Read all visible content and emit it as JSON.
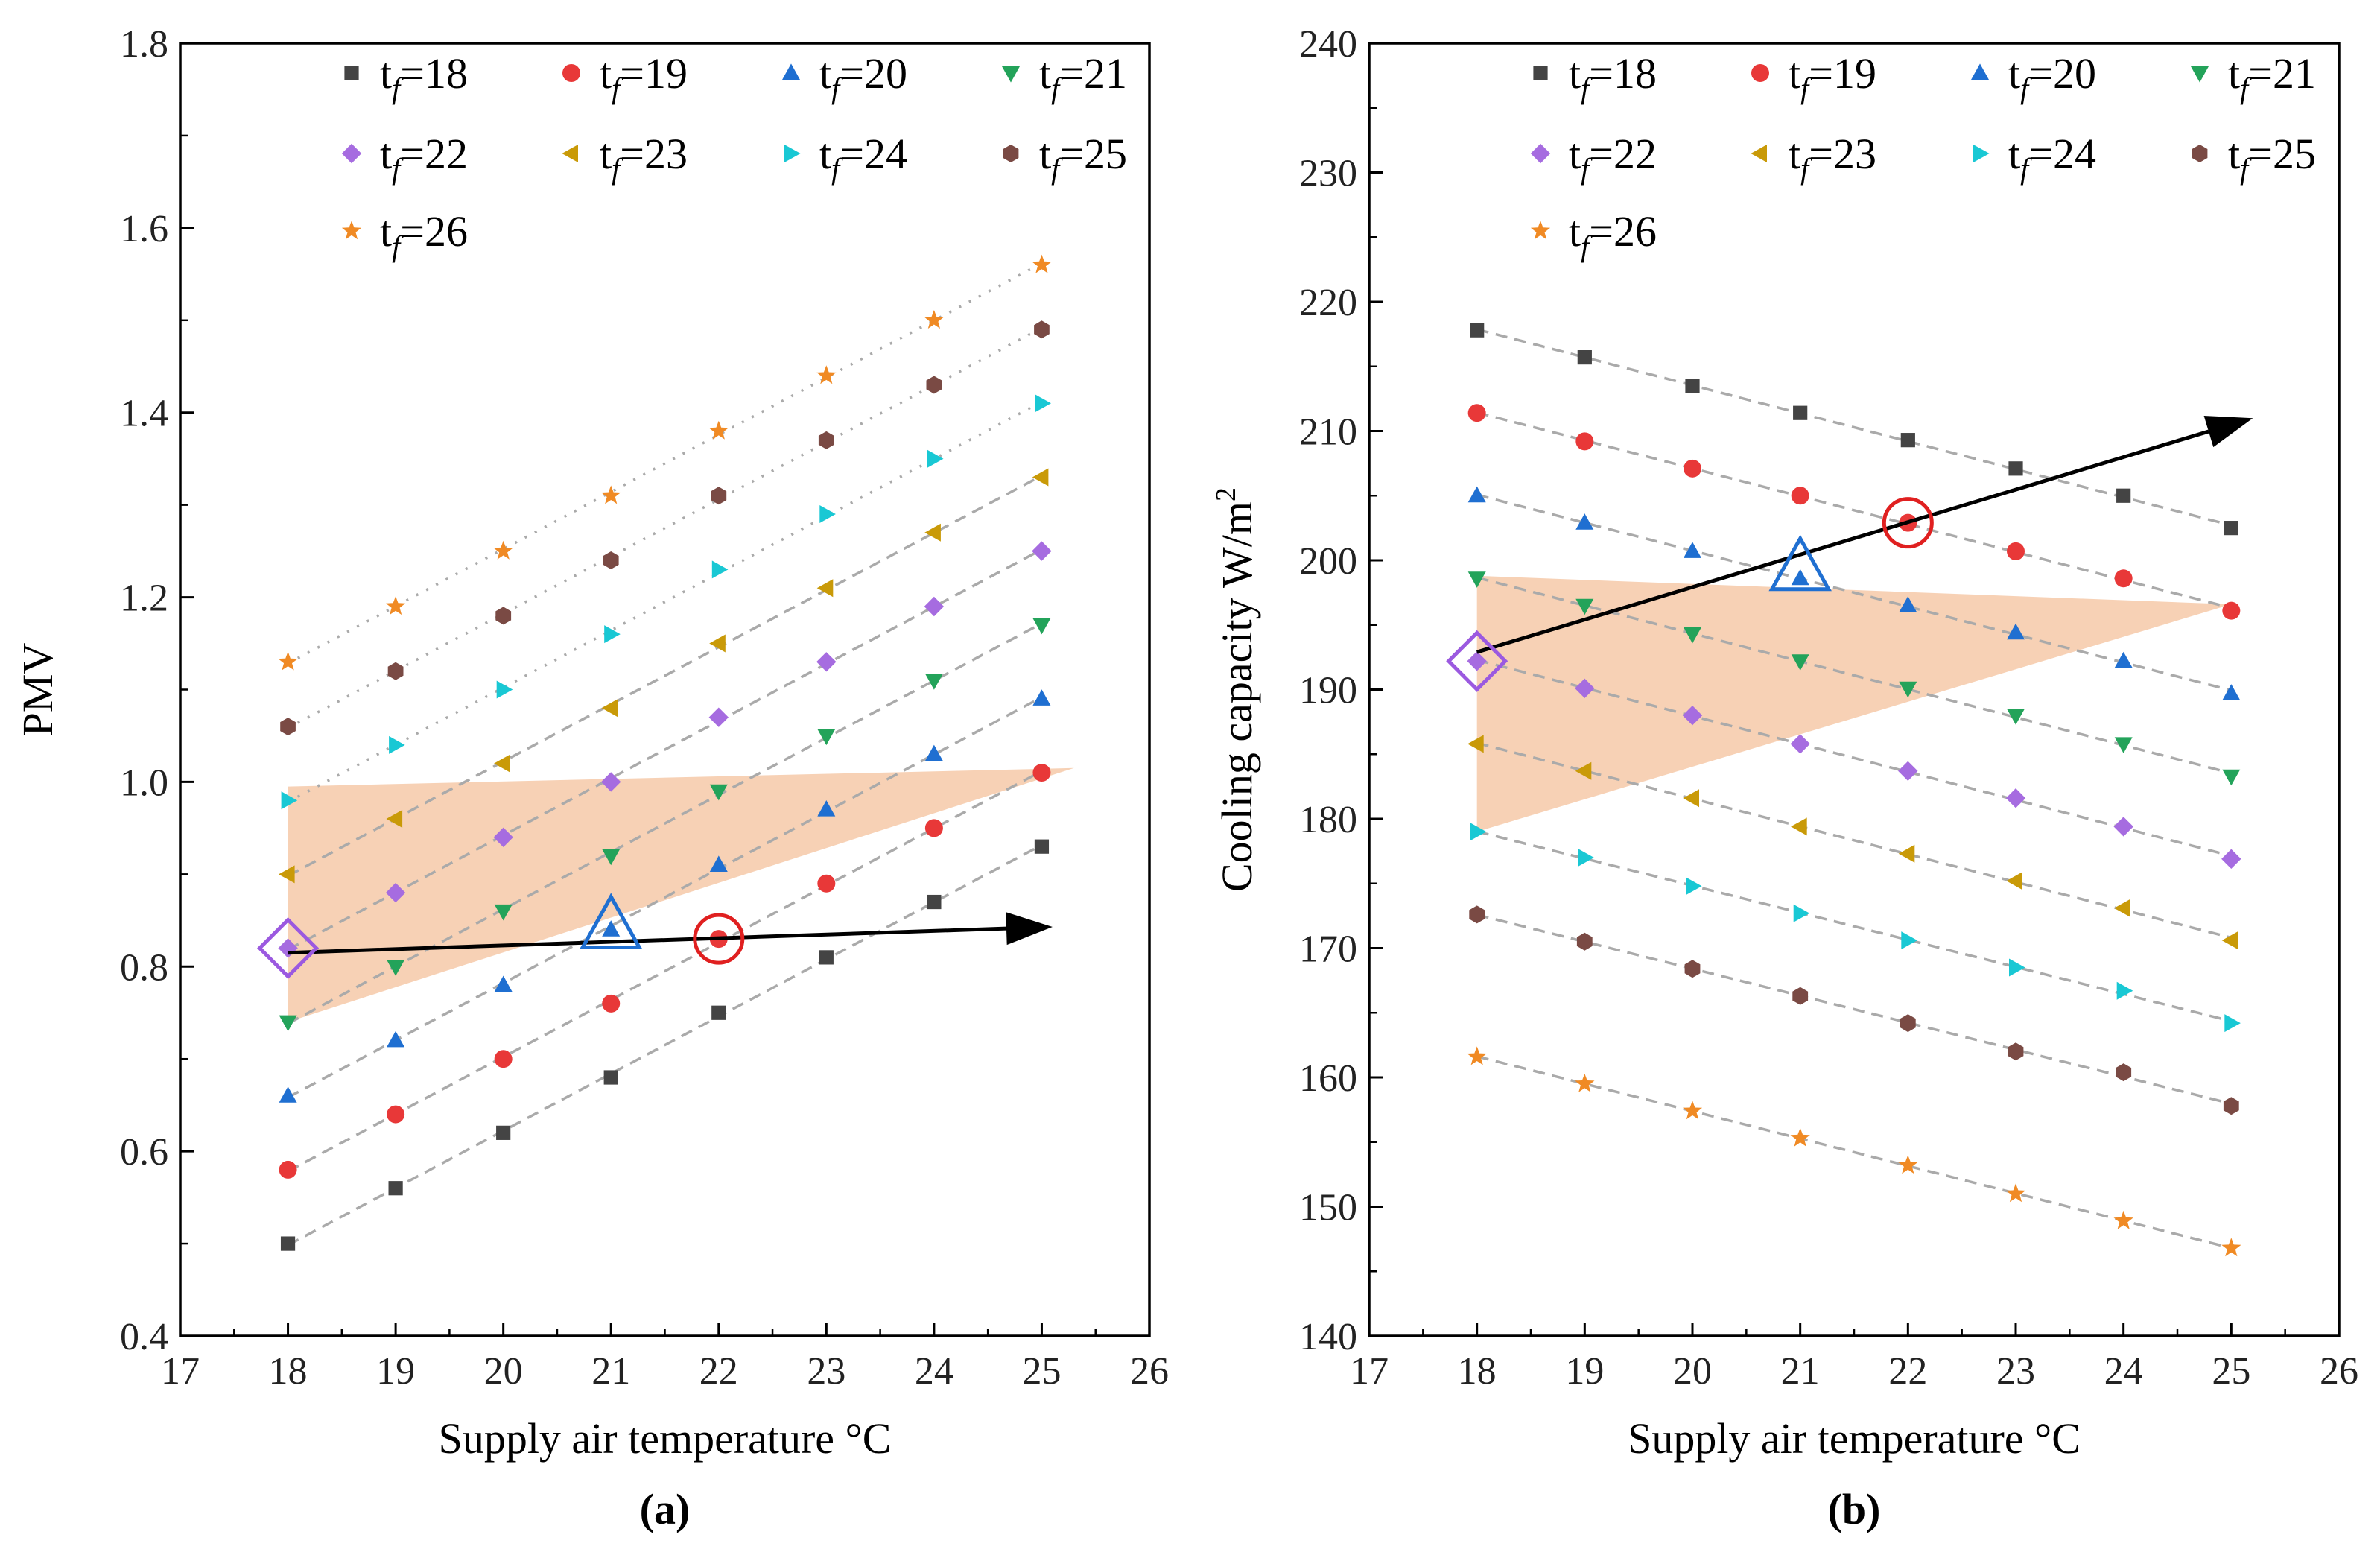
{
  "chart_data": [
    {
      "type": "scatter",
      "panel_label": "(a)",
      "xlabel": "Supply air temperature °C",
      "ylabel": "PMV",
      "xlim": [
        17,
        26
      ],
      "ylim": [
        0.4,
        1.8
      ],
      "xticks": [
        "17",
        "18",
        "19",
        "20",
        "21",
        "22",
        "23",
        "24",
        "25",
        "26"
      ],
      "yticks": [
        "0.4",
        "0.6",
        "0.8",
        "1.0",
        "1.2",
        "1.4",
        "1.6",
        "1.8"
      ],
      "x": [
        18,
        19,
        20,
        21,
        22,
        23,
        24,
        25
      ],
      "series": [
        {
          "name": "18",
          "values": [
            0.5,
            0.56,
            0.62,
            0.68,
            0.75,
            0.81,
            0.87,
            0.93
          ]
        },
        {
          "name": "19",
          "values": [
            0.58,
            0.64,
            0.7,
            0.76,
            0.83,
            0.89,
            0.95,
            1.01
          ]
        },
        {
          "name": "20",
          "values": [
            0.66,
            0.72,
            0.78,
            0.84,
            0.91,
            0.97,
            1.03,
            1.09
          ]
        },
        {
          "name": "21",
          "values": [
            0.74,
            0.8,
            0.86,
            0.92,
            0.99,
            1.05,
            1.11,
            1.17
          ]
        },
        {
          "name": "22",
          "values": [
            0.82,
            0.88,
            0.94,
            1.0,
            1.07,
            1.13,
            1.19,
            1.25
          ]
        },
        {
          "name": "23",
          "values": [
            0.9,
            0.96,
            1.02,
            1.08,
            1.15,
            1.21,
            1.27,
            1.33
          ]
        },
        {
          "name": "24",
          "values": [
            0.98,
            1.04,
            1.1,
            1.16,
            1.23,
            1.29,
            1.35,
            1.41
          ]
        },
        {
          "name": "25",
          "values": [
            1.06,
            1.12,
            1.18,
            1.24,
            1.31,
            1.37,
            1.43,
            1.49
          ]
        },
        {
          "name": "26",
          "values": [
            1.13,
            1.19,
            1.25,
            1.31,
            1.38,
            1.44,
            1.5,
            1.56
          ]
        }
      ],
      "shaded_region": [
        [
          18,
          0.74
        ],
        [
          18,
          0.995
        ],
        [
          25.3,
          1.015
        ]
      ],
      "arrow": {
        "from": [
          18,
          0.815
        ],
        "to": [
          25.1,
          0.843
        ]
      },
      "highlights": [
        {
          "shape": "diamond",
          "x": 18,
          "y": 0.82,
          "color": "#9b59e0"
        },
        {
          "shape": "triangle",
          "x": 21,
          "y": 0.845,
          "color": "#1f6fd1"
        },
        {
          "shape": "circle",
          "x": 22,
          "y": 0.83,
          "color": "#e02020"
        }
      ]
    },
    {
      "type": "scatter",
      "panel_label": "(b)",
      "xlabel": "Supply air temperature °C",
      "ylabel": "Cooling capacity W/m",
      "ylabel_sup": "2",
      "xlim": [
        17,
        26
      ],
      "ylim": [
        140,
        240
      ],
      "xticks": [
        "17",
        "18",
        "19",
        "20",
        "21",
        "22",
        "23",
        "24",
        "25",
        "26"
      ],
      "yticks": [
        "140",
        "150",
        "160",
        "170",
        "180",
        "190",
        "200",
        "210",
        "220",
        "230",
        "240"
      ],
      "x": [
        18,
        19,
        20,
        21,
        22,
        23,
        24,
        25
      ],
      "series": [
        {
          "name": "18",
          "values": [
            217.8,
            215.7,
            213.5,
            211.4,
            209.3,
            207.1,
            205.0,
            202.5
          ]
        },
        {
          "name": "19",
          "values": [
            211.4,
            209.2,
            207.1,
            205.0,
            202.9,
            200.7,
            198.6,
            196.1
          ]
        },
        {
          "name": "20",
          "values": [
            205.0,
            202.9,
            200.7,
            198.6,
            196.5,
            194.4,
            192.2,
            189.7
          ]
        },
        {
          "name": "21",
          "values": [
            198.6,
            196.5,
            194.3,
            192.2,
            190.1,
            188.0,
            185.8,
            183.3
          ]
        },
        {
          "name": "22",
          "values": [
            192.2,
            190.1,
            188.0,
            185.8,
            183.7,
            181.6,
            179.4,
            176.9
          ]
        },
        {
          "name": "23",
          "values": [
            185.8,
            183.7,
            181.6,
            179.4,
            177.3,
            175.2,
            173.1,
            170.6
          ]
        },
        {
          "name": "24",
          "values": [
            179.0,
            177.0,
            174.8,
            172.7,
            170.6,
            168.5,
            166.7,
            164.2
          ]
        },
        {
          "name": "25",
          "values": [
            172.6,
            170.5,
            168.4,
            166.3,
            164.2,
            162.0,
            160.4,
            157.8
          ]
        },
        {
          "name": "26",
          "values": [
            161.6,
            159.5,
            157.4,
            155.3,
            153.2,
            151.0,
            148.9,
            146.8
          ]
        }
      ],
      "shaded_region": [
        [
          18,
          179.0
        ],
        [
          18,
          198.8
        ],
        [
          25.0,
          196.6
        ]
      ],
      "arrow": {
        "from": [
          18,
          192.9
        ],
        "to": [
          25.2,
          211.0
        ]
      },
      "highlights": [
        {
          "shape": "diamond",
          "x": 18,
          "y": 192.2,
          "color": "#9b59e0"
        },
        {
          "shape": "triangle",
          "x": 21,
          "y": 199.5,
          "color": "#1f6fd1"
        },
        {
          "shape": "circle",
          "x": 22,
          "y": 202.9,
          "color": "#e02020"
        }
      ]
    }
  ],
  "legend": {
    "prefix_main": "t",
    "prefix_sub": "f",
    "separator": "=",
    "location": "top"
  },
  "markers": [
    {
      "shape": "square",
      "color": "#444444"
    },
    {
      "shape": "circle",
      "color": "#e83838"
    },
    {
      "shape": "triangle-up",
      "color": "#1f6fd1"
    },
    {
      "shape": "triangle-down",
      "color": "#23a35a"
    },
    {
      "shape": "diamond",
      "color": "#a66ce0"
    },
    {
      "shape": "triangle-left",
      "color": "#c99a08"
    },
    {
      "shape": "triangle-right",
      "color": "#19c8d4"
    },
    {
      "shape": "hexagon",
      "color": "#7a4a44"
    },
    {
      "shape": "star",
      "color": "#f08a24"
    }
  ],
  "colors": {
    "fit_line": "#aaaaaa",
    "shade": "#f6c9a8",
    "arrow": "#000000",
    "axes": "#000000"
  }
}
